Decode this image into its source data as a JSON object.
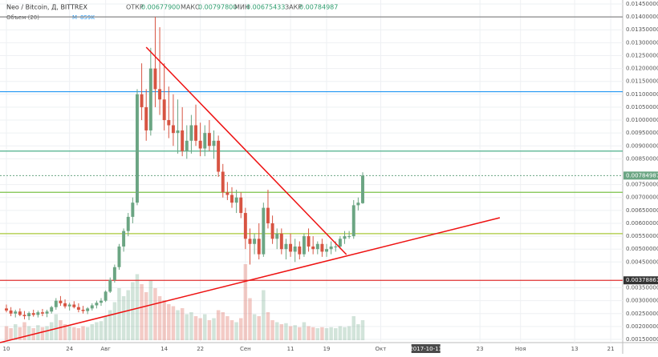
{
  "chart_data": {
    "type": "candlestick",
    "header": {
      "symbol": "Neo / Bitcoin, Д, BITTREX",
      "open_label": "ОТКР",
      "open": "0.00677900",
      "high_label": "МАКС",
      "high": "0.00797800",
      "low_label": "МИН",
      "low": "0.00675433",
      "close_label": "ЗАКР",
      "close": "0.00784987"
    },
    "volume_header": {
      "name": "Объем (20)",
      "ma_label": "M",
      "ma_value": "859K"
    },
    "x": [
      0,
      1,
      2,
      3,
      4,
      5,
      6,
      7,
      8,
      9,
      10,
      11,
      12,
      13,
      14,
      15,
      16,
      17,
      18,
      19,
      20,
      21,
      22,
      23,
      24,
      25,
      26,
      27,
      28,
      29,
      30,
      31,
      32,
      33,
      34,
      35,
      36,
      37,
      38,
      39,
      40,
      41,
      42,
      43,
      44,
      45,
      46,
      47,
      48,
      49,
      50,
      51,
      52,
      53,
      54,
      55,
      56,
      57,
      58,
      59,
      60,
      61,
      62,
      63,
      64,
      65,
      66,
      67,
      68,
      69,
      70,
      71,
      72,
      73,
      74,
      75,
      76,
      77,
      78,
      79
    ],
    "open": [
      0.0027,
      0.00262,
      0.0025,
      0.00258,
      0.00245,
      0.0024,
      0.00252,
      0.00245,
      0.00255,
      0.0025,
      0.00258,
      0.00275,
      0.003,
      0.0029,
      0.00278,
      0.00285,
      0.00275,
      0.00265,
      0.0026,
      0.0027,
      0.00282,
      0.00292,
      0.003,
      0.00335,
      0.0038,
      0.0043,
      0.0051,
      0.0057,
      0.00625,
      0.0068,
      0.011,
      0.0105,
      0.0096,
      0.012,
      0.0112,
      0.0108,
      0.01,
      0.0098,
      0.0095,
      0.0096,
      0.0088,
      0.0092,
      0.0098,
      0.0092,
      0.0089,
      0.0095,
      0.009,
      0.0092,
      0.008,
      0.0072,
      0.0071,
      0.0068,
      0.007,
      0.0064,
      0.0054,
      0.0052,
      0.0054,
      0.0048,
      0.0066,
      0.006,
      0.0054,
      0.0056,
      0.005,
      0.0052,
      0.0049,
      0.0051,
      0.0048,
      0.0055,
      0.0051,
      0.005,
      0.0052,
      0.0049,
      0.005,
      0.0051,
      0.0051,
      0.0054,
      0.0055,
      0.0055,
      0.0067,
      0.006779
    ],
    "high": [
      0.00285,
      0.00275,
      0.00265,
      0.0027,
      0.0026,
      0.00258,
      0.00265,
      0.00262,
      0.00268,
      0.00265,
      0.0028,
      0.0031,
      0.00318,
      0.00305,
      0.00292,
      0.00298,
      0.0029,
      0.0028,
      0.00275,
      0.0029,
      0.003,
      0.0031,
      0.0034,
      0.0039,
      0.0044,
      0.0052,
      0.0058,
      0.0064,
      0.007,
      0.0112,
      0.0122,
      0.0112,
      0.0128,
      0.014,
      0.0136,
      0.0122,
      0.0113,
      0.011,
      0.0108,
      0.0105,
      0.0098,
      0.0102,
      0.0106,
      0.0099,
      0.0098,
      0.01,
      0.0096,
      0.0094,
      0.0083,
      0.0076,
      0.0074,
      0.0073,
      0.0072,
      0.0066,
      0.0058,
      0.0056,
      0.006,
      0.0068,
      0.0073,
      0.0063,
      0.0058,
      0.0058,
      0.0054,
      0.0056,
      0.0054,
      0.0053,
      0.0056,
      0.0058,
      0.0055,
      0.0053,
      0.0054,
      0.0052,
      0.0053,
      0.0053,
      0.0055,
      0.0057,
      0.0057,
      0.0069,
      0.007,
      0.007978
    ],
    "low": [
      0.00255,
      0.0024,
      0.00235,
      0.0024,
      0.00228,
      0.00225,
      0.00238,
      0.00235,
      0.0024,
      0.00236,
      0.0025,
      0.00265,
      0.0028,
      0.0027,
      0.00262,
      0.0027,
      0.00255,
      0.0025,
      0.00248,
      0.00262,
      0.0027,
      0.0028,
      0.00295,
      0.0033,
      0.0037,
      0.0042,
      0.0049,
      0.0055,
      0.006,
      0.0067,
      0.01,
      0.0092,
      0.0094,
      0.0105,
      0.0102,
      0.0096,
      0.0093,
      0.009,
      0.0087,
      0.0086,
      0.0085,
      0.0087,
      0.009,
      0.0086,
      0.0086,
      0.0088,
      0.0085,
      0.0078,
      0.007,
      0.0069,
      0.0066,
      0.0064,
      0.0062,
      0.005,
      0.0044,
      0.0048,
      0.0046,
      0.0047,
      0.0058,
      0.0052,
      0.005,
      0.0048,
      0.0046,
      0.0047,
      0.0045,
      0.0046,
      0.0047,
      0.0049,
      0.0048,
      0.0048,
      0.0047,
      0.0047,
      0.0048,
      0.0049,
      0.005,
      0.0052,
      0.0054,
      0.0054,
      0.0065,
      0.00675433
    ],
    "close": [
      0.00262,
      0.0025,
      0.00258,
      0.00245,
      0.0024,
      0.00252,
      0.00245,
      0.00255,
      0.0025,
      0.00258,
      0.00275,
      0.003,
      0.0029,
      0.00278,
      0.00285,
      0.00275,
      0.00265,
      0.0026,
      0.0027,
      0.00282,
      0.00292,
      0.003,
      0.00335,
      0.0038,
      0.0043,
      0.0051,
      0.0057,
      0.00625,
      0.0068,
      0.011,
      0.0105,
      0.0096,
      0.012,
      0.0112,
      0.0108,
      0.01,
      0.0098,
      0.0095,
      0.0096,
      0.0088,
      0.0092,
      0.0098,
      0.0092,
      0.0089,
      0.0095,
      0.009,
      0.0092,
      0.008,
      0.0072,
      0.0071,
      0.0068,
      0.007,
      0.0064,
      0.0054,
      0.0052,
      0.0054,
      0.0048,
      0.0066,
      0.006,
      0.0054,
      0.0056,
      0.005,
      0.0052,
      0.0049,
      0.0051,
      0.0048,
      0.0055,
      0.0051,
      0.005,
      0.0052,
      0.0049,
      0.005,
      0.0051,
      0.0051,
      0.0054,
      0.0055,
      0.0055,
      0.0067,
      0.0068,
      0.00784987
    ],
    "volume": [
      700,
      600,
      800,
      650,
      900,
      700,
      600,
      750,
      650,
      700,
      900,
      1300,
      1000,
      800,
      700,
      650,
      600,
      700,
      650,
      800,
      900,
      950,
      1200,
      1500,
      1900,
      2600,
      2200,
      2500,
      2900,
      3300,
      2800,
      2400,
      3000,
      2600,
      2200,
      2000,
      1800,
      1700,
      1500,
      1600,
      1300,
      1400,
      1200,
      1100,
      1300,
      1000,
      1100,
      1500,
      1400,
      1200,
      1000,
      900,
      1100,
      3800,
      2100,
      1300,
      1200,
      2500,
      1400,
      1000,
      900,
      800,
      850,
      700,
      750,
      650,
      900,
      700,
      650,
      600,
      650,
      600,
      650,
      600,
      700,
      650,
      700,
      1200,
      800,
      1000
    ],
    "xlim": [
      -1.42,
      136.65
    ],
    "xticks": [
      {
        "value": 0,
        "label": "10"
      },
      {
        "value": 14,
        "label": "24"
      },
      {
        "value": 22,
        "label": "Авг"
      },
      {
        "value": 35,
        "label": "14"
      },
      {
        "value": 43,
        "label": "22"
      },
      {
        "value": 53,
        "label": "Сен"
      },
      {
        "value": 63,
        "label": "11"
      },
      {
        "value": 71,
        "label": "19"
      },
      {
        "value": 83,
        "label": "Окт"
      },
      {
        "value": 105,
        "label": "23"
      },
      {
        "value": 114,
        "label": "Ноя"
      },
      {
        "value": 126,
        "label": "13"
      },
      {
        "value": 134,
        "label": "21"
      }
    ],
    "crosshair_x": {
      "value": 93,
      "label": "2017-10-11"
    },
    "ylim": [
      0.001376,
      0.014655
    ],
    "yticks": [
      {
        "value": 0.0015,
        "label": "0.00150000"
      },
      {
        "value": 0.002,
        "label": "0.00200000"
      },
      {
        "value": 0.0025,
        "label": "0.00250000"
      },
      {
        "value": 0.003,
        "label": "0.00300000"
      },
      {
        "value": 0.0035,
        "label": "0.00350000"
      },
      {
        "value": 0.0045,
        "label": "0.00450000"
      },
      {
        "value": 0.005,
        "label": "0.00500000"
      },
      {
        "value": 0.0055,
        "label": "0.00550000"
      },
      {
        "value": 0.006,
        "label": "0.00600000"
      },
      {
        "value": 0.0065,
        "label": "0.00650000"
      },
      {
        "value": 0.007,
        "label": "0.00700000"
      },
      {
        "value": 0.0075,
        "label": "0.00750000"
      },
      {
        "value": 0.0085,
        "label": "0.00850000"
      },
      {
        "value": 0.009,
        "label": "0.00900000"
      },
      {
        "value": 0.0095,
        "label": "0.00950000"
      },
      {
        "value": 0.01,
        "label": "0.01000000"
      },
      {
        "value": 0.0105,
        "label": "0.01050000"
      },
      {
        "value": 0.011,
        "label": "0.01100000"
      },
      {
        "value": 0.0115,
        "label": "0.01150000"
      },
      {
        "value": 0.012,
        "label": "0.01200000"
      },
      {
        "value": 0.0125,
        "label": "0.01250000"
      },
      {
        "value": 0.013,
        "label": "0.01300000"
      },
      {
        "value": 0.0135,
        "label": "0.01350000"
      },
      {
        "value": 0.014,
        "label": "0.01400000"
      },
      {
        "value": 0.0145,
        "label": "0.01450000"
      }
    ],
    "price_labels": [
      {
        "value": 0.00784987,
        "label": "0.00784987",
        "color": "#6ba583"
      },
      {
        "value": 0.00378861,
        "label": "0.00378861",
        "color": "#333333"
      }
    ],
    "levels": [
      {
        "value": 0.014,
        "color": "#888888"
      },
      {
        "value": 0.0111,
        "color": "#2196f3"
      },
      {
        "value": 0.0088,
        "color": "#4caf8a"
      },
      {
        "value": 0.0072,
        "color": "#7cc24a"
      },
      {
        "value": 0.0056,
        "color": "#a8c83a"
      },
      {
        "value": 0.00378861,
        "color": "#e03030"
      }
    ],
    "trendlines": [
      {
        "x": [
          31,
          75.4
        ],
        "y": [
          0.012825,
          0.004789
        ],
        "color": "#ee1111"
      },
      {
        "x": [
          -1.42,
          109.4
        ],
        "y": [
          0.001376,
          0.006216
        ],
        "color": "#ee1111"
      }
    ],
    "up_color": "#6ba583",
    "down_color": "#d75442",
    "grid": true
  }
}
